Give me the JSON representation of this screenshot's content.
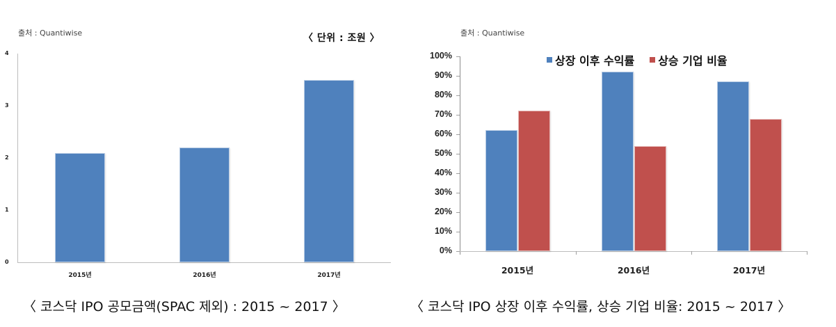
{
  "left_panel": {
    "source": "출처 : Quantiwise",
    "unit": "〈   단위 : 조원   〉",
    "caption": "〈   코스닥 IPO 공모금액(SPAC 제외) : 2015 ~ 2017   〉",
    "y_ticks": [
      "0",
      "1",
      "2",
      "3",
      "4"
    ],
    "categories": [
      "2015년",
      "2016년",
      "2017년"
    ]
  },
  "right_panel": {
    "source": "출처 : Quantiwise",
    "caption": "〈   코스닥 IPO 상장 이후 수익률, 상승 기업 비율: 2015 ~ 2017   〉",
    "y_ticks": [
      "0%",
      "10%",
      "20%",
      "30%",
      "40%",
      "50%",
      "60%",
      "70%",
      "80%",
      "90%",
      "100%"
    ],
    "categories": [
      "2015년",
      "2016년",
      "2017년"
    ],
    "legend": [
      {
        "label": "상장 이후 수익률",
        "color": "#4f81bd"
      },
      {
        "label": "상승 기업 비율",
        "color": "#c0504d"
      }
    ]
  },
  "chart_data": [
    {
      "type": "bar",
      "title": "코스닥 IPO 공모금액(SPAC 제외) : 2015 ~ 2017",
      "xlabel": "",
      "ylabel": "단위 : 조원",
      "categories": [
        "2015년",
        "2016년",
        "2017년"
      ],
      "values": [
        2.1,
        2.2,
        3.5
      ],
      "ylim": [
        0,
        4
      ],
      "y_ticks": [
        0,
        1,
        2,
        3,
        4
      ],
      "grid": false,
      "colors": [
        "#4f81bd"
      ],
      "source": "Quantiwise"
    },
    {
      "type": "bar",
      "title": "코스닥 IPO 상장 이후 수익률, 상승 기업 비율: 2015 ~ 2017",
      "xlabel": "",
      "ylabel": "",
      "categories": [
        "2015년",
        "2016년",
        "2017년"
      ],
      "series": [
        {
          "name": "상장 이후 수익률",
          "values": [
            62,
            92,
            87
          ],
          "color": "#4f81bd"
        },
        {
          "name": "상승 기업 비율",
          "values": [
            72,
            54,
            68
          ],
          "color": "#c0504d"
        }
      ],
      "ylim": [
        0,
        100
      ],
      "y_ticks": [
        "0%",
        "10%",
        "20%",
        "30%",
        "40%",
        "50%",
        "60%",
        "70%",
        "80%",
        "90%",
        "100%"
      ],
      "grid": false,
      "legend_position": "top",
      "source": "Quantiwise"
    }
  ]
}
